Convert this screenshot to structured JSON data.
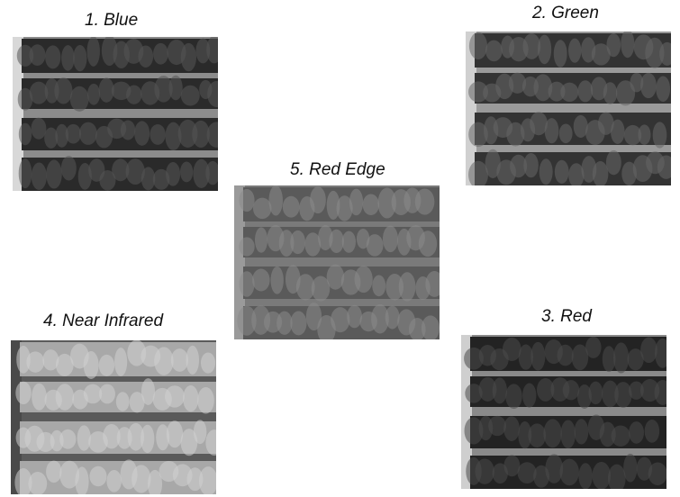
{
  "figure": {
    "panels": [
      {
        "id": "blue",
        "caption": "1. Blue",
        "tone": "#4a4a4a",
        "tree": "#2a2a2a",
        "tree_hi": "#555555",
        "gap": "#8c8c8c",
        "edge": "#d8d8d8"
      },
      {
        "id": "green",
        "caption": "2. Green",
        "tone": "#555555",
        "tree": "#333333",
        "tree_hi": "#666666",
        "gap": "#9a9a9a",
        "edge": "#d0d0d0"
      },
      {
        "id": "red",
        "caption": "3. Red",
        "tone": "#3f3f3f",
        "tree": "#232323",
        "tree_hi": "#4a4a4a",
        "gap": "#8a8a8a",
        "edge": "#cfcfcf"
      },
      {
        "id": "nir",
        "caption": "4. Near Infrared",
        "tone": "#6a6a6a",
        "tree": "#a8a8a8",
        "tree_hi": "#d0d0d0",
        "gap": "#5a5a5a",
        "edge": "#4a4a4a"
      },
      {
        "id": "rededge",
        "caption": "5. Red Edge",
        "tone": "#5e5e5e",
        "tree": "#5a5a5a",
        "tree_hi": "#8a8a8a",
        "gap": "#7a7a7a",
        "edge": "#9a9a9a"
      }
    ]
  }
}
